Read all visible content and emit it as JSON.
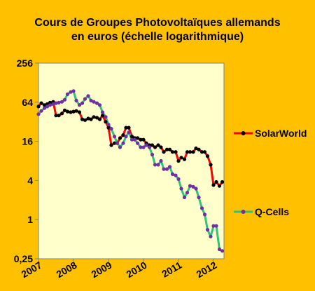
{
  "chart_data": {
    "type": "line",
    "title": "Cours de Groupes Photovoltaïques allemands",
    "subtitle": "en euros (échelle logarithmique)",
    "xlabel": "",
    "ylabel": "",
    "y_scale": "log",
    "ylim": [
      0.25,
      256
    ],
    "y_ticks": [
      256,
      64,
      16,
      4,
      1,
      0.25
    ],
    "y_tick_labels": [
      "256",
      "64",
      "16",
      "4",
      "1",
      "0,25"
    ],
    "xlim": [
      2007,
      2012.3
    ],
    "x_ticks": [
      2007,
      2008,
      2009,
      2010,
      2011,
      2012
    ],
    "x_tick_labels": [
      "2007",
      "2008",
      "2009",
      "2010",
      "2011",
      "2012"
    ],
    "grid": false,
    "legend": "right",
    "series": [
      {
        "name": "SolarWorld",
        "color": "#ff0000",
        "marker_color": "#000000",
        "x": [
          2007.0,
          2007.08,
          2007.17,
          2007.25,
          2007.33,
          2007.42,
          2007.5,
          2007.58,
          2007.67,
          2007.75,
          2007.83,
          2007.92,
          2008.0,
          2008.08,
          2008.17,
          2008.25,
          2008.33,
          2008.42,
          2008.5,
          2008.58,
          2008.67,
          2008.75,
          2008.83,
          2008.92,
          2009.0,
          2009.08,
          2009.17,
          2009.25,
          2009.33,
          2009.42,
          2009.5,
          2009.58,
          2009.67,
          2009.75,
          2009.83,
          2009.92,
          2010.0,
          2010.08,
          2010.17,
          2010.25,
          2010.33,
          2010.42,
          2010.5,
          2010.58,
          2010.67,
          2010.75,
          2010.83,
          2010.92,
          2011.0,
          2011.08,
          2011.17,
          2011.25,
          2011.33,
          2011.42,
          2011.5,
          2011.58,
          2011.67,
          2011.75,
          2011.83,
          2011.92,
          2012.0,
          2012.08,
          2012.17,
          2012.25
        ],
        "values": [
          55,
          62,
          58,
          60,
          63,
          65,
          40,
          40,
          43,
          48,
          46,
          45,
          46,
          47,
          45,
          35,
          34,
          36,
          35,
          38,
          37,
          35,
          40,
          32,
          26,
          14,
          15,
          15,
          18,
          20,
          26,
          26,
          19,
          18,
          18,
          17,
          17,
          15,
          14,
          14,
          13,
          14,
          13,
          11,
          12,
          12,
          11,
          11,
          8,
          9,
          8.5,
          11,
          11,
          11,
          12.5,
          12,
          11,
          11,
          9.5,
          7,
          3.4,
          3.8,
          3.3,
          3.8
        ]
      },
      {
        "name": "Q-Cells",
        "color": "#2ec47a",
        "marker_color": "#7030a0",
        "x": [
          2007.0,
          2007.08,
          2007.17,
          2007.25,
          2007.33,
          2007.42,
          2007.5,
          2007.58,
          2007.67,
          2007.75,
          2007.83,
          2007.92,
          2008.0,
          2008.08,
          2008.17,
          2008.25,
          2008.33,
          2008.42,
          2008.5,
          2008.58,
          2008.67,
          2008.75,
          2008.83,
          2008.92,
          2009.0,
          2009.08,
          2009.17,
          2009.25,
          2009.33,
          2009.42,
          2009.5,
          2009.58,
          2009.67,
          2009.75,
          2009.83,
          2009.92,
          2010.0,
          2010.08,
          2010.17,
          2010.25,
          2010.33,
          2010.42,
          2010.5,
          2010.58,
          2010.67,
          2010.75,
          2010.83,
          2010.92,
          2011.0,
          2011.08,
          2011.17,
          2011.25,
          2011.33,
          2011.42,
          2011.5,
          2011.58,
          2011.67,
          2011.75,
          2011.83,
          2011.92,
          2012.0,
          2012.08,
          2012.17,
          2012.25
        ],
        "values": [
          42,
          47,
          52,
          55,
          58,
          60,
          62,
          63,
          65,
          70,
          85,
          92,
          95,
          68,
          58,
          62,
          72,
          80,
          68,
          65,
          62,
          58,
          45,
          38,
          29,
          25,
          19,
          15,
          13,
          15,
          19,
          22,
          17,
          17,
          15,
          13,
          13,
          14,
          13,
          10,
          7,
          7,
          8,
          6,
          6,
          6.5,
          5,
          4.8,
          4.2,
          3,
          2.2,
          2.6,
          3.3,
          3.2,
          3,
          2.2,
          1.5,
          1.2,
          0.7,
          0.55,
          0.8,
          0.8,
          0.35,
          0.33
        ]
      }
    ]
  }
}
